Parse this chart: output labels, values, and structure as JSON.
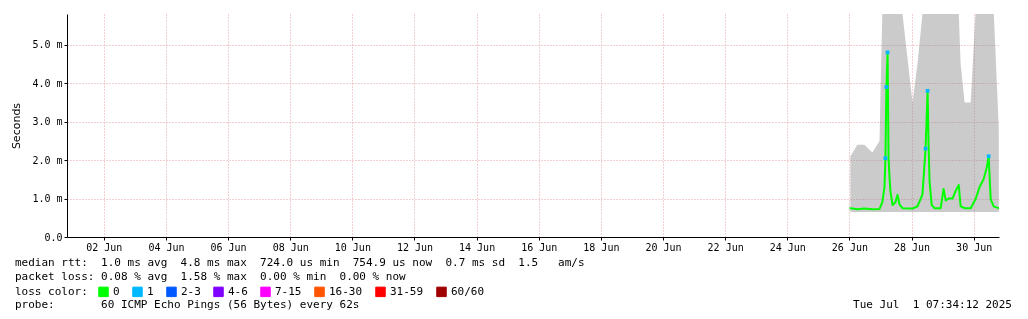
{
  "chart_data": {
    "type": "line",
    "ylabel": "Seconds",
    "legend_title": "loss color:",
    "legend": "bottom left",
    "grid": true,
    "xlim": [
      "2025-06-01T07:34",
      "2025-07-01T07:34"
    ],
    "xticks": [
      {
        "value": "2025-06-02T12:00",
        "label": "02 Jun"
      },
      {
        "value": "2025-06-04T12:00",
        "label": "04 Jun"
      },
      {
        "value": "2025-06-06T12:00",
        "label": "06 Jun"
      },
      {
        "value": "2025-06-08T12:00",
        "label": "08 Jun"
      },
      {
        "value": "2025-06-10T12:00",
        "label": "10 Jun"
      },
      {
        "value": "2025-06-12T12:00",
        "label": "12 Jun"
      },
      {
        "value": "2025-06-14T12:00",
        "label": "14 Jun"
      },
      {
        "value": "2025-06-16T12:00",
        "label": "16 Jun"
      },
      {
        "value": "2025-06-18T12:00",
        "label": "18 Jun"
      },
      {
        "value": "2025-06-20T12:00",
        "label": "20 Jun"
      },
      {
        "value": "2025-06-22T12:00",
        "label": "22 Jun"
      },
      {
        "value": "2025-06-24T12:00",
        "label": "24 Jun"
      },
      {
        "value": "2025-06-26T12:00",
        "label": "26 Jun"
      },
      {
        "value": "2025-06-28T12:00",
        "label": "28 Jun"
      },
      {
        "value": "2025-06-30T12:00",
        "label": "30 Jun"
      }
    ],
    "ylim": [
      0,
      5.8
    ],
    "yticks": [
      {
        "value": 0,
        "label": "0.0"
      },
      {
        "value": 1,
        "label": "1.0 m"
      },
      {
        "value": 2,
        "label": "2.0 m"
      },
      {
        "value": 3,
        "label": "3.0 m"
      },
      {
        "value": 4,
        "label": "4.0 m"
      },
      {
        "value": 5,
        "label": "5.0 m"
      }
    ],
    "x": [
      "2025-06-26T12:45",
      "2025-06-26T18:10",
      "2025-06-26T23:35",
      "2025-06-27T05:45",
      "2025-06-27T11:15",
      "2025-06-27T13:25",
      "2025-06-27T15:05",
      "2025-06-27T15:50",
      "2025-06-27T16:35",
      "2025-06-27T17:30",
      "2025-06-27T18:15",
      "2025-06-27T19:00",
      "2025-06-27T19:40",
      "2025-06-27T21:20",
      "2025-06-27T23:30",
      "2025-06-28T01:10",
      "2025-06-28T02:40",
      "2025-06-28T05:00",
      "2025-06-28T12:45",
      "2025-06-28T16:35",
      "2025-06-28T20:25",
      "2025-06-28T22:50",
      "2025-06-29T00:25",
      "2025-06-29T01:10",
      "2025-06-29T01:55",
      "2025-06-29T03:35",
      "2025-06-29T05:45",
      "2025-06-29T10:30",
      "2025-06-29T12:45",
      "2025-06-29T14:25",
      "2025-06-29T16:35",
      "2025-06-29T19:40",
      "2025-06-29T22:05",
      "2025-06-30T00:30",
      "2025-06-30T01:55",
      "2025-06-30T05:00",
      "2025-06-30T09:40",
      "2025-06-30T13:25",
      "2025-06-30T16:35",
      "2025-06-30T19:40",
      "2025-06-30T22:05",
      "2025-06-30T23:35",
      "2025-07-01T01:10",
      "2025-07-01T03:35",
      "2025-07-01T07:25"
    ],
    "series": [
      {
        "name": "0",
        "color": "#00ff00",
        "values": [
          0.75,
          0.72,
          0.74,
          0.72,
          0.73,
          0.9,
          1.3,
          2.05,
          3.9,
          4.8,
          2.05,
          1.55,
          1.2,
          0.83,
          0.9,
          1.1,
          0.85,
          0.75,
          0.74,
          0.8,
          1.1,
          2.3,
          3.8,
          2.4,
          1.45,
          0.83,
          0.75,
          0.75,
          1.25,
          0.95,
          1.0,
          1.0,
          1.2,
          1.35,
          0.8,
          0.75,
          0.75,
          0.98,
          1.3,
          1.5,
          1.8,
          2.1,
          0.98,
          0.79,
          0.75
        ],
        "lower": [
          0.65,
          0.65,
          0.65,
          0.65,
          0.65,
          0.65,
          0.65,
          0.65,
          0.65,
          0.65,
          0.65,
          0.65,
          0.65,
          0.65,
          0.65,
          0.65,
          0.65,
          0.65,
          0.65,
          0.65,
          0.65,
          0.65,
          0.65,
          0.65,
          0.65,
          0.65,
          0.65,
          0.65,
          0.65,
          0.65,
          0.65,
          0.65,
          0.65,
          0.65,
          0.65,
          0.65,
          0.65,
          0.65,
          0.65,
          0.65,
          0.65,
          0.65,
          0.65,
          0.65,
          0.65
        ],
        "upper": [
          2.1,
          2.4,
          2.4,
          2.2,
          2.5,
          5.8,
          5.8,
          5.8,
          5.8,
          5.8,
          5.8,
          5.8,
          5.8,
          5.8,
          5.8,
          5.8,
          5.8,
          5.8,
          3.5,
          4.5,
          5.8,
          5.8,
          5.8,
          5.8,
          5.8,
          5.8,
          5.8,
          5.8,
          5.8,
          5.8,
          5.8,
          5.8,
          5.8,
          5.8,
          4.5,
          3.5,
          3.5,
          5.8,
          5.8,
          5.8,
          5.8,
          5.8,
          5.8,
          5.8,
          2.8
        ]
      },
      {
        "name": "1",
        "type": "scatter",
        "marker": "square",
        "color": "#00b8ff",
        "x": [
          "2025-06-27T15:50",
          "2025-06-27T16:35",
          "2025-06-27T17:30",
          "2025-06-28T22:50",
          "2025-06-29T00:25",
          "2025-06-30T23:35"
        ],
        "values": [
          2.05,
          3.9,
          4.8,
          2.3,
          3.8,
          2.1
        ]
      },
      {
        "name": "2-3",
        "color": "#0059ff",
        "values": [
          null,
          null,
          null,
          null,
          null,
          null,
          null,
          null,
          null,
          null,
          null,
          null,
          null,
          null,
          null,
          null,
          null,
          null,
          null,
          null,
          null,
          null,
          null,
          null,
          null,
          null,
          null,
          null,
          null,
          null,
          null,
          null,
          null,
          null,
          null,
          null,
          null,
          null,
          null,
          null,
          null,
          null,
          null,
          null,
          null
        ]
      },
      {
        "name": "4-6",
        "color": "#7e00ff",
        "values": [
          null,
          null,
          null,
          null,
          null,
          null,
          null,
          null,
          null,
          null,
          null,
          null,
          null,
          null,
          null,
          null,
          null,
          null,
          null,
          null,
          null,
          null,
          null,
          null,
          null,
          null,
          null,
          null,
          null,
          null,
          null,
          null,
          null,
          null,
          null,
          null,
          null,
          null,
          null,
          null,
          null,
          null,
          null,
          null,
          null
        ]
      },
      {
        "name": "7-15",
        "color": "#ff00ff",
        "values": [
          null,
          null,
          null,
          null,
          null,
          null,
          null,
          null,
          null,
          null,
          null,
          null,
          null,
          null,
          null,
          null,
          null,
          null,
          null,
          null,
          null,
          null,
          null,
          null,
          null,
          null,
          null,
          null,
          null,
          null,
          null,
          null,
          null,
          null,
          null,
          null,
          null,
          null,
          null,
          null,
          null,
          null,
          null,
          null,
          null
        ]
      },
      {
        "name": "16-30",
        "color": "#ff5500",
        "values": [
          null,
          null,
          null,
          null,
          null,
          null,
          null,
          null,
          null,
          null,
          null,
          null,
          null,
          null,
          null,
          null,
          null,
          null,
          null,
          null,
          null,
          null,
          null,
          null,
          null,
          null,
          null,
          null,
          null,
          null,
          null,
          null,
          null,
          null,
          null,
          null,
          null,
          null,
          null,
          null,
          null,
          null,
          null,
          null,
          null
        ]
      },
      {
        "name": "31-59",
        "color": "#ff0000",
        "values": [
          null,
          null,
          null,
          null,
          null,
          null,
          null,
          null,
          null,
          null,
          null,
          null,
          null,
          null,
          null,
          null,
          null,
          null,
          null,
          null,
          null,
          null,
          null,
          null,
          null,
          null,
          null,
          null,
          null,
          null,
          null,
          null,
          null,
          null,
          null,
          null,
          null,
          null,
          null,
          null,
          null,
          null,
          null,
          null,
          null
        ]
      },
      {
        "name": "60/60",
        "color": "#a10000",
        "values": [
          null,
          null,
          null,
          null,
          null,
          null,
          null,
          null,
          null,
          null,
          null,
          null,
          null,
          null,
          null,
          null,
          null,
          null,
          null,
          null,
          null,
          null,
          null,
          null,
          null,
          null,
          null,
          null,
          null,
          null,
          null,
          null,
          null,
          null,
          null,
          null,
          null,
          null,
          null,
          null,
          null,
          null,
          null,
          null,
          null
        ]
      }
    ],
    "annotations": [
      "median rtt:  1.0 ms avg  4.8 ms max  724.0 us min  754.9 us now  0.7 ms sd  1.5   am/s",
      "packet loss: 0.08 % avg  1.58 % max  0.00 % min  0.00 % now",
      "probe:       60 ICMP Echo Pings (56 Bytes) every 62s",
      "Tue Jul  1 07:34:12 2025"
    ]
  }
}
